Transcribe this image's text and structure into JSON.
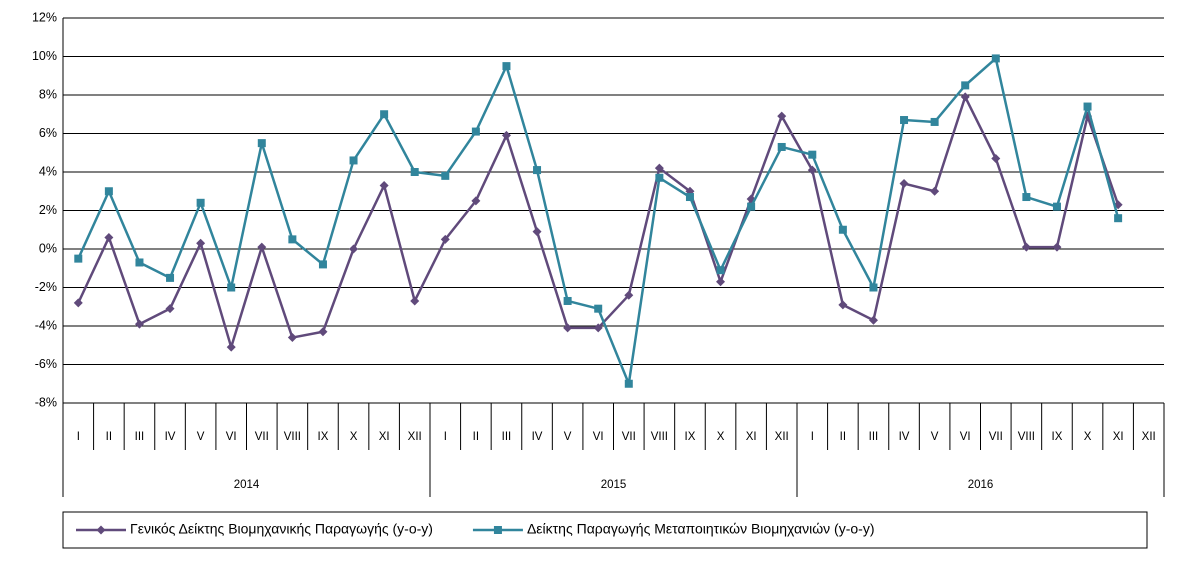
{
  "chart_data": {
    "type": "line",
    "categories": [
      "I",
      "II",
      "III",
      "IV",
      "V",
      "VI",
      "VII",
      "VIII",
      "IX",
      "X",
      "XI",
      "XII",
      "I",
      "II",
      "III",
      "IV",
      "V",
      "VI",
      "VII",
      "VIII",
      "IX",
      "X",
      "XI",
      "XII",
      "I",
      "II",
      "III",
      "IV",
      "V",
      "VI",
      "VII",
      "VIII",
      "IX",
      "X",
      "XI",
      "XII"
    ],
    "years": [
      "2014",
      "2015",
      "2016"
    ],
    "series": [
      {
        "name": "Γενικός Δείκτης Βιομηχανικής Παραγωγής (y-o-y)",
        "color": "#604a7b",
        "marker": "diamond",
        "values": [
          -2.8,
          0.6,
          -3.9,
          -3.1,
          0.3,
          -5.1,
          0.1,
          -4.6,
          -4.3,
          0.0,
          3.3,
          -2.7,
          0.5,
          2.5,
          5.9,
          0.9,
          -4.1,
          -4.1,
          -2.4,
          4.2,
          3.0,
          -1.7,
          2.6,
          6.9,
          4.1,
          -2.9,
          -3.7,
          3.4,
          3.0,
          7.9,
          4.7,
          0.1,
          0.1,
          6.9,
          2.3,
          null
        ]
      },
      {
        "name": "Δείκτης Παραγωγής Μεταποιητικών Βιομηχανιών (y-o-y)",
        "color": "#31859c",
        "marker": "square",
        "values": [
          -0.5,
          3.0,
          -0.7,
          -1.5,
          2.4,
          -2.0,
          5.5,
          0.5,
          -0.8,
          4.6,
          7.0,
          4.0,
          3.8,
          6.1,
          9.5,
          4.1,
          -2.7,
          -3.1,
          -7.0,
          3.7,
          2.7,
          -1.1,
          2.2,
          5.3,
          4.9,
          1.0,
          -2.0,
          6.7,
          6.6,
          8.5,
          9.9,
          2.7,
          2.2,
          7.4,
          1.6,
          null
        ]
      }
    ],
    "ylim": [
      -8,
      12
    ],
    "yticks": [
      {
        "value": -8,
        "label": "-8%"
      },
      {
        "value": -6,
        "label": "-6%"
      },
      {
        "value": -4,
        "label": "-4%"
      },
      {
        "value": -2,
        "label": "-2%"
      },
      {
        "value": 0,
        "label": "0%"
      },
      {
        "value": 2,
        "label": "2%"
      },
      {
        "value": 4,
        "label": "4%"
      },
      {
        "value": 6,
        "label": "6%"
      },
      {
        "value": 8,
        "label": "8%"
      },
      {
        "value": 10,
        "label": "10%"
      },
      {
        "value": 12,
        "label": "12%"
      }
    ],
    "grid": true,
    "legend": "bottom"
  }
}
